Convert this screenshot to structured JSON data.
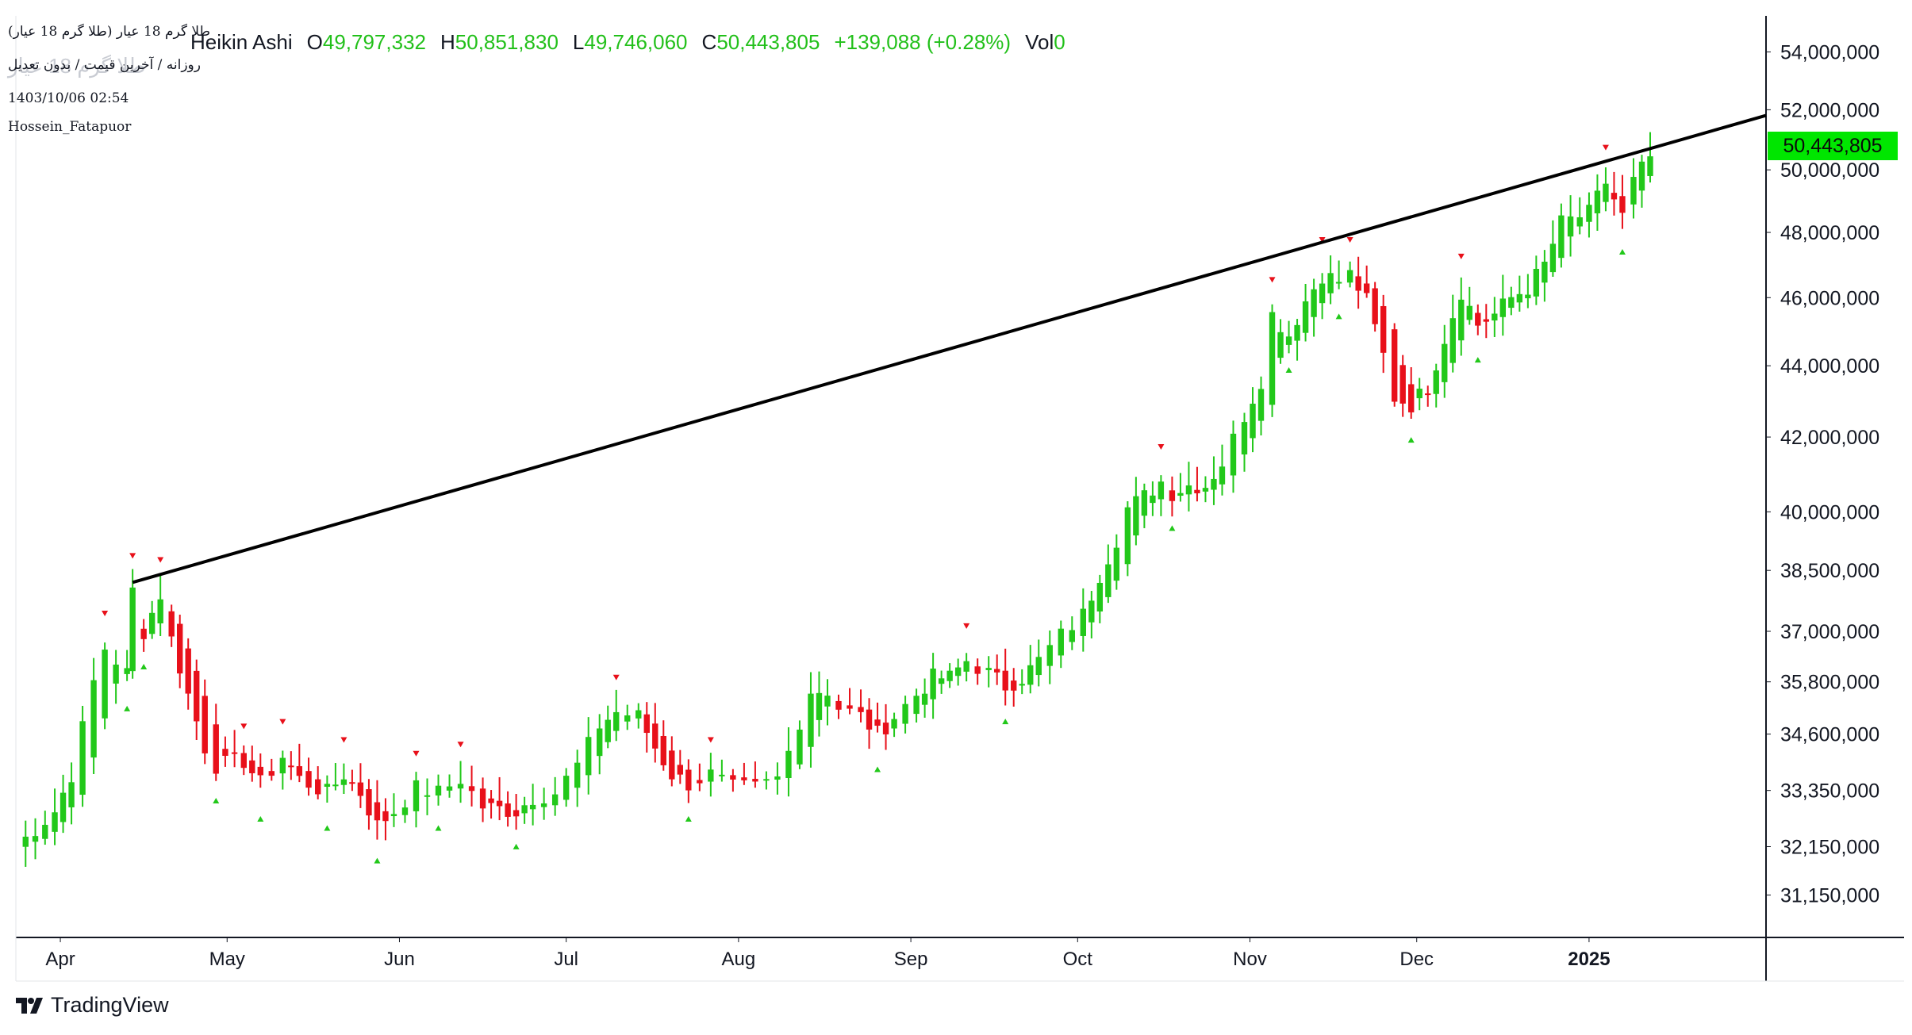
{
  "header": {
    "symbol_line": "(طلا گرم 18 عیار (طلا گرم 18 عیار",
    "chart_style": "Heikin Ashi",
    "ghost_text": "طلا گرم 18 عیار",
    "meta_line": "روزانه / آخرین قیمت / بدون تعدیل",
    "timestamp": "1403/10/06 02:54",
    "author": "Hossein_Fatapuor"
  },
  "legend": {
    "o_label": "O",
    "o_value": "49,797,332",
    "h_label": "H",
    "h_value": "50,851,830",
    "l_label": "L",
    "l_value": "49,746,060",
    "c_label": "C",
    "c_value": "50,443,805",
    "change": "+139,088 (+0.28%)",
    "vol_label": "Vol",
    "vol_value": "0"
  },
  "price_tag": "50,443,805",
  "footer": {
    "brand": "TradingView"
  },
  "colors": {
    "up": "#22c81a",
    "down": "#e8101a",
    "trendline": "#000000",
    "price_tag_bg": "#00e600",
    "axis": "#131722"
  },
  "chart_data": {
    "type": "candlestick",
    "style": "Heikin Ashi",
    "y_scale": "log",
    "ylim": [
      30300000,
      55000000
    ],
    "y_ticks": [
      {
        "value": 54000000,
        "label": "54,000,000"
      },
      {
        "value": 52000000,
        "label": "52,000,000"
      },
      {
        "value": 50000000,
        "label": "50,000,000"
      },
      {
        "value": 48000000,
        "label": "48,000,000"
      },
      {
        "value": 46000000,
        "label": "46,000,000"
      },
      {
        "value": 44000000,
        "label": "44,000,000"
      },
      {
        "value": 42000000,
        "label": "42,000,000"
      },
      {
        "value": 40000000,
        "label": "40,000,000"
      },
      {
        "value": 38500000,
        "label": "38,500,000"
      },
      {
        "value": 37000000,
        "label": "37,000,000"
      },
      {
        "value": 35800000,
        "label": "35,800,000"
      },
      {
        "value": 34600000,
        "label": "34,600,000"
      },
      {
        "value": 33350000,
        "label": "33,350,000"
      },
      {
        "value": 32150000,
        "label": "32,150,000"
      },
      {
        "value": 31150000,
        "label": "31,150,000"
      }
    ],
    "x_ticks": [
      {
        "date": "2024-04-01",
        "label": "Apr"
      },
      {
        "date": "2024-05-01",
        "label": "May"
      },
      {
        "date": "2024-06-01",
        "label": "Jun"
      },
      {
        "date": "2024-07-01",
        "label": "Jul"
      },
      {
        "date": "2024-08-01",
        "label": "Aug"
      },
      {
        "date": "2024-09-01",
        "label": "Sep"
      },
      {
        "date": "2024-10-01",
        "label": "Oct"
      },
      {
        "date": "2024-11-01",
        "label": "Nov"
      },
      {
        "date": "2024-12-01",
        "label": "Dec"
      },
      {
        "date": "2025-01-01",
        "label": "2025"
      }
    ],
    "x_range": [
      "2024-03-24",
      "2025-01-12"
    ],
    "closes": [
      [
        "2024-03-24",
        32150000
      ],
      [
        "2024-03-31",
        32900000
      ],
      [
        "2024-04-03",
        33700000
      ],
      [
        "2024-04-07",
        35800000
      ],
      [
        "2024-04-09",
        36600000
      ],
      [
        "2024-04-13",
        36000000
      ],
      [
        "2024-04-14",
        38000000
      ],
      [
        "2024-04-16",
        37000000
      ],
      [
        "2024-04-19",
        37900000
      ],
      [
        "2024-04-21",
        36800000
      ],
      [
        "2024-04-24",
        35500000
      ],
      [
        "2024-04-27",
        34300000
      ],
      [
        "2024-04-29",
        33900000
      ],
      [
        "2024-05-04",
        34000000
      ],
      [
        "2024-05-07",
        33500000
      ],
      [
        "2024-05-11",
        34100000
      ],
      [
        "2024-05-14",
        33600000
      ],
      [
        "2024-05-19",
        33300000
      ],
      [
        "2024-05-22",
        33700000
      ],
      [
        "2024-05-25",
        33300000
      ],
      [
        "2024-05-28",
        32600000
      ],
      [
        "2024-05-31",
        32900000
      ],
      [
        "2024-06-04",
        33400000
      ],
      [
        "2024-06-08",
        33300000
      ],
      [
        "2024-06-12",
        33600000
      ],
      [
        "2024-06-16",
        33000000
      ],
      [
        "2024-06-22",
        32900000
      ],
      [
        "2024-06-25",
        33200000
      ],
      [
        "2024-06-29",
        33300000
      ],
      [
        "2024-07-03",
        33900000
      ],
      [
        "2024-07-07",
        34800000
      ],
      [
        "2024-07-10",
        35100000
      ],
      [
        "2024-07-14",
        35000000
      ],
      [
        "2024-07-17",
        34300000
      ],
      [
        "2024-07-20",
        33700000
      ],
      [
        "2024-07-23",
        33500000
      ],
      [
        "2024-07-27",
        33700000
      ],
      [
        "2024-07-31",
        33400000
      ],
      [
        "2024-08-04",
        33400000
      ],
      [
        "2024-08-08",
        33600000
      ],
      [
        "2024-08-10",
        34200000
      ],
      [
        "2024-08-12",
        34900000
      ],
      [
        "2024-08-14",
        35600000
      ],
      [
        "2024-08-17",
        35600000
      ],
      [
        "2024-08-19",
        35200000
      ],
      [
        "2024-08-23",
        35000000
      ],
      [
        "2024-08-26",
        34600000
      ],
      [
        "2024-08-29",
        35000000
      ],
      [
        "2024-09-02",
        35500000
      ],
      [
        "2024-09-05",
        35900000
      ],
      [
        "2024-09-08",
        35900000
      ],
      [
        "2024-09-11",
        36300000
      ],
      [
        "2024-09-15",
        36000000
      ],
      [
        "2024-09-18",
        35700000
      ],
      [
        "2024-09-21",
        35900000
      ],
      [
        "2024-09-24",
        36300000
      ],
      [
        "2024-09-28",
        36900000
      ],
      [
        "2024-10-02",
        37400000
      ],
      [
        "2024-10-05",
        38400000
      ],
      [
        "2024-10-08",
        39300000
      ],
      [
        "2024-10-10",
        40100000
      ],
      [
        "2024-10-13",
        40400000
      ],
      [
        "2024-10-16",
        40800000
      ],
      [
        "2024-10-18",
        40500000
      ],
      [
        "2024-10-21",
        40700000
      ],
      [
        "2024-10-24",
        40700000
      ],
      [
        "2024-10-27",
        41300000
      ],
      [
        "2024-10-31",
        42600000
      ],
      [
        "2024-11-03",
        43600000
      ],
      [
        "2024-11-05",
        45500000
      ],
      [
        "2024-11-08",
        44900000
      ],
      [
        "2024-11-11",
        45900000
      ],
      [
        "2024-11-14",
        46700000
      ],
      [
        "2024-11-17",
        46500000
      ],
      [
        "2024-11-19",
        46700000
      ],
      [
        "2024-11-22",
        45900000
      ],
      [
        "2024-11-25",
        44300000
      ],
      [
        "2024-11-27",
        43100000
      ],
      [
        "2024-11-30",
        42900000
      ],
      [
        "2024-12-03",
        43400000
      ],
      [
        "2024-12-06",
        44800000
      ],
      [
        "2024-12-09",
        46200000
      ],
      [
        "2024-12-12",
        45200000
      ],
      [
        "2024-12-15",
        45500000
      ],
      [
        "2024-12-18",
        46000000
      ],
      [
        "2024-12-21",
        46300000
      ],
      [
        "2024-12-24",
        47000000
      ],
      [
        "2024-12-27",
        48300000
      ],
      [
        "2025-01-01",
        48600000
      ],
      [
        "2025-01-04",
        49600000
      ],
      [
        "2025-01-07",
        48500000
      ],
      [
        "2025-01-09",
        49600000
      ],
      [
        "2025-01-12",
        50443805
      ]
    ],
    "trendline": [
      [
        "2024-04-14",
        38200000
      ],
      [
        "2025-01-12",
        50700000
      ]
    ]
  }
}
